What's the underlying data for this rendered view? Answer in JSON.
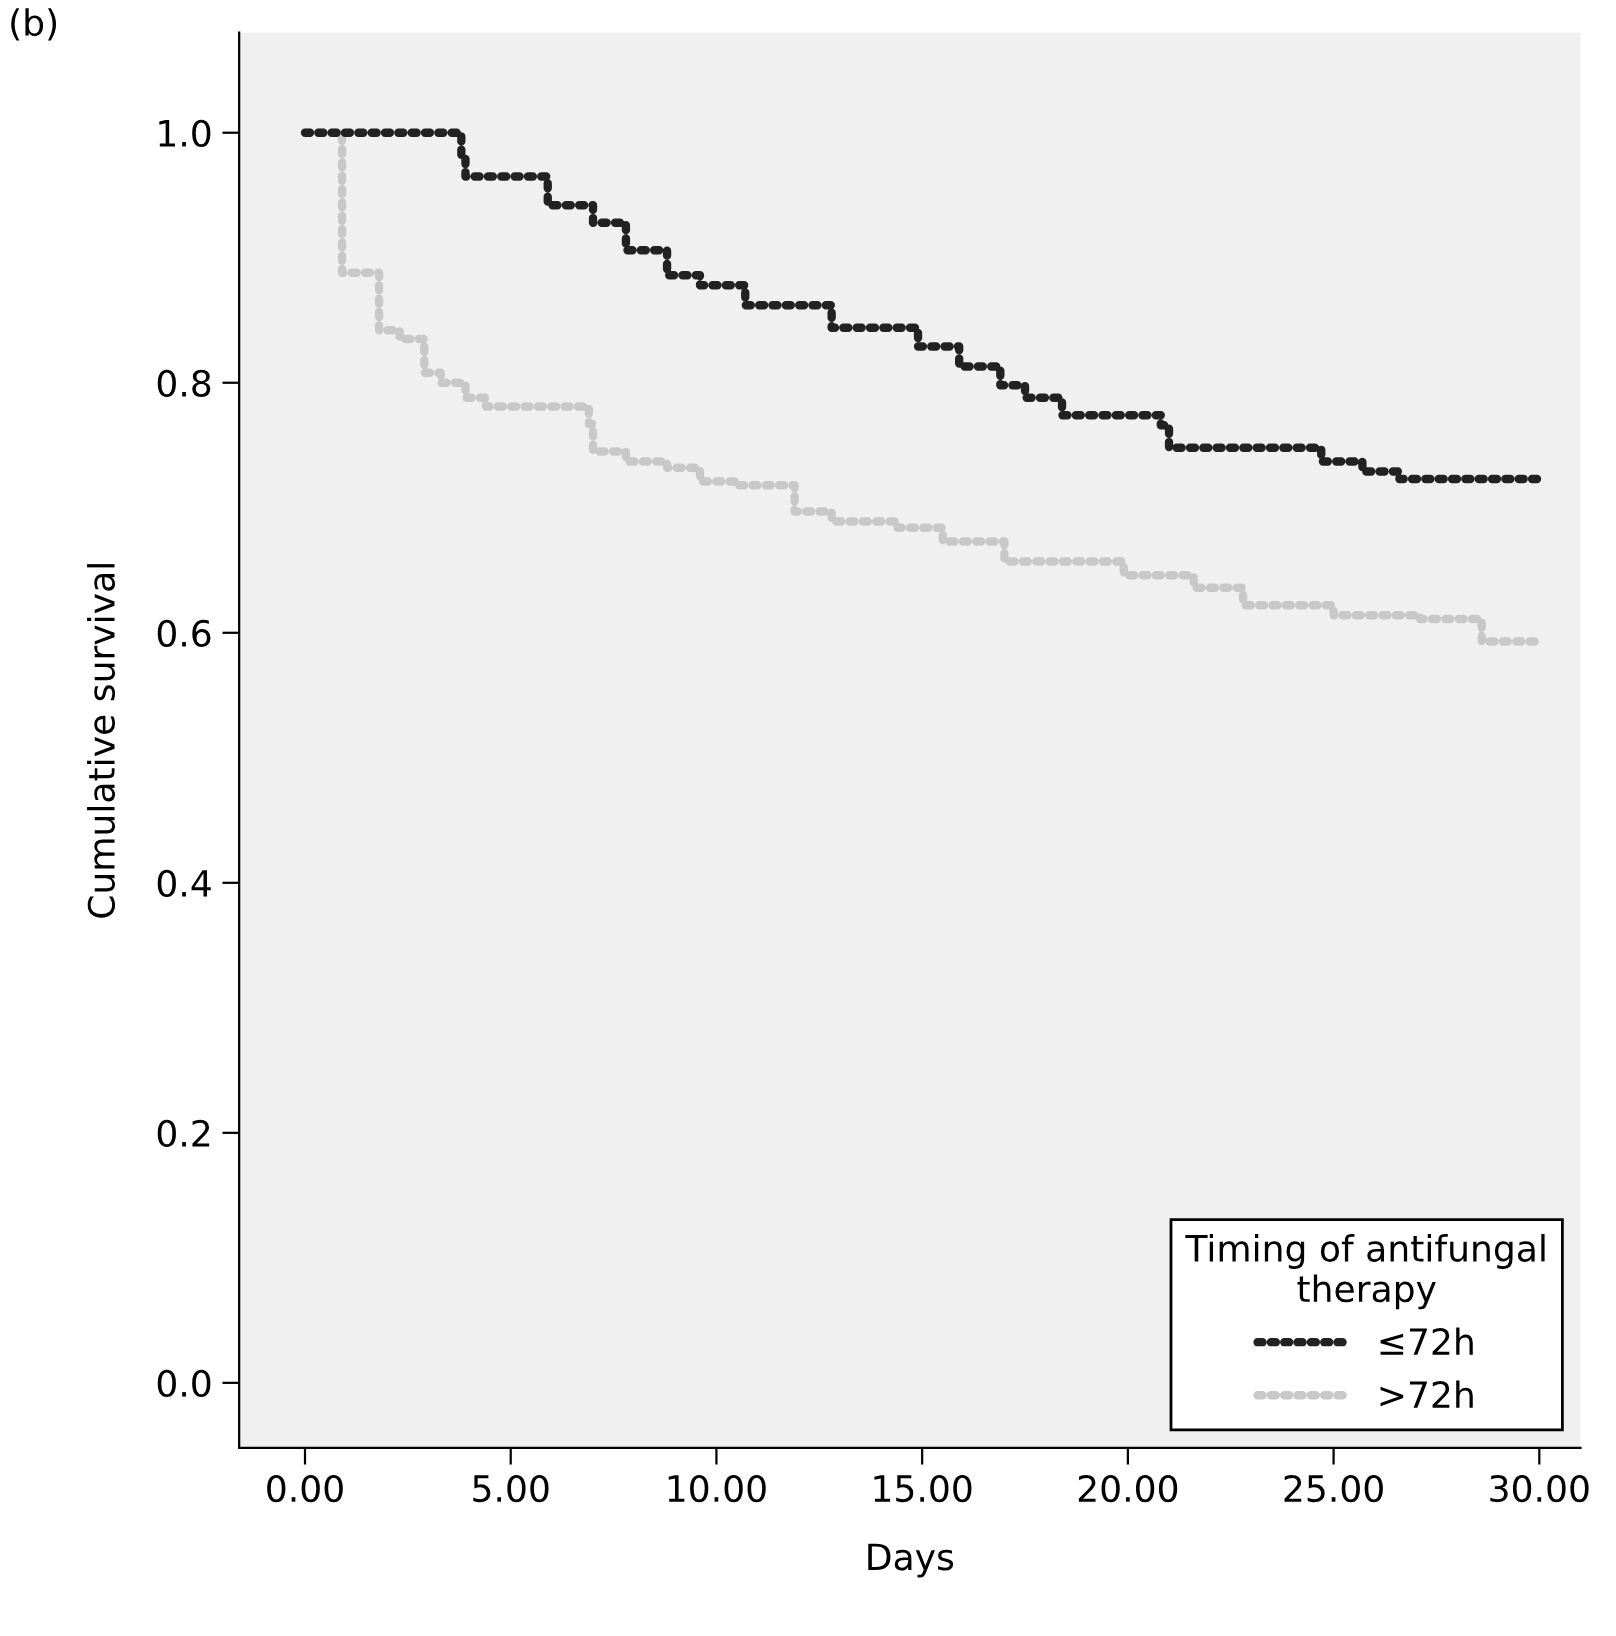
{
  "chart_data": {
    "type": "step",
    "xlabel": "Days",
    "ylabel": "Cumulative survival",
    "legend_title": "Timing of antifungal\ntherapy",
    "annotations": [
      "(b)"
    ],
    "series": [
      {
        "name": "≤72h",
        "color": "#222222",
        "x": [
          0,
          3.8,
          3.9,
          5.9,
          7.0,
          7.8,
          8.8,
          9.6,
          10.7,
          12.8,
          14.9,
          15.9,
          16.9,
          17.5,
          18.4,
          20.8,
          21.0,
          24.7,
          25.7,
          26.6,
          30
        ],
        "values": [
          1.0,
          0.98,
          0.965,
          0.942,
          0.928,
          0.906,
          0.886,
          0.878,
          0.862,
          0.844,
          0.829,
          0.813,
          0.798,
          0.788,
          0.774,
          0.766,
          0.748,
          0.737,
          0.729,
          0.723,
          0.723
        ]
      },
      {
        "name": ">72h",
        "color": "#c8c8c8",
        "x": [
          0,
          0.9,
          1.8,
          2.3,
          2.9,
          3.3,
          3.9,
          4.4,
          6.9,
          7.0,
          7.8,
          8.8,
          9.6,
          10.5,
          11.9,
          12.8,
          14.4,
          15.5,
          17.0,
          19.9,
          21.6,
          22.8,
          25.0,
          27.1,
          28.6,
          30
        ],
        "values": [
          1.0,
          0.888,
          0.842,
          0.835,
          0.808,
          0.8,
          0.788,
          0.781,
          0.767,
          0.745,
          0.737,
          0.732,
          0.721,
          0.718,
          0.697,
          0.689,
          0.684,
          0.673,
          0.657,
          0.646,
          0.636,
          0.622,
          0.614,
          0.611,
          0.593,
          0.593
        ]
      }
    ],
    "xlim": [
      -1.6,
      31.0
    ],
    "ylim": [
      -0.052,
      1.08
    ],
    "xticks": [
      {
        "value": 0,
        "label": "0.00"
      },
      {
        "value": 5,
        "label": "5.00"
      },
      {
        "value": 10,
        "label": "10.00"
      },
      {
        "value": 15,
        "label": "15.00"
      },
      {
        "value": 20,
        "label": "20.00"
      },
      {
        "value": 25,
        "label": "25.00"
      },
      {
        "value": 30,
        "label": "30.00"
      }
    ],
    "yticks": [
      {
        "value": 0,
        "label": "0.0"
      },
      {
        "value": 0.2,
        "label": "0.2"
      },
      {
        "value": 0.4,
        "label": "0.4"
      },
      {
        "value": 0.6,
        "label": "0.6"
      },
      {
        "value": 0.8,
        "label": "0.8"
      },
      {
        "value": 1.0,
        "label": "1.0"
      }
    ],
    "legend": "bottom right",
    "marker": "none",
    "line_style": "dotted",
    "grid": false
  }
}
